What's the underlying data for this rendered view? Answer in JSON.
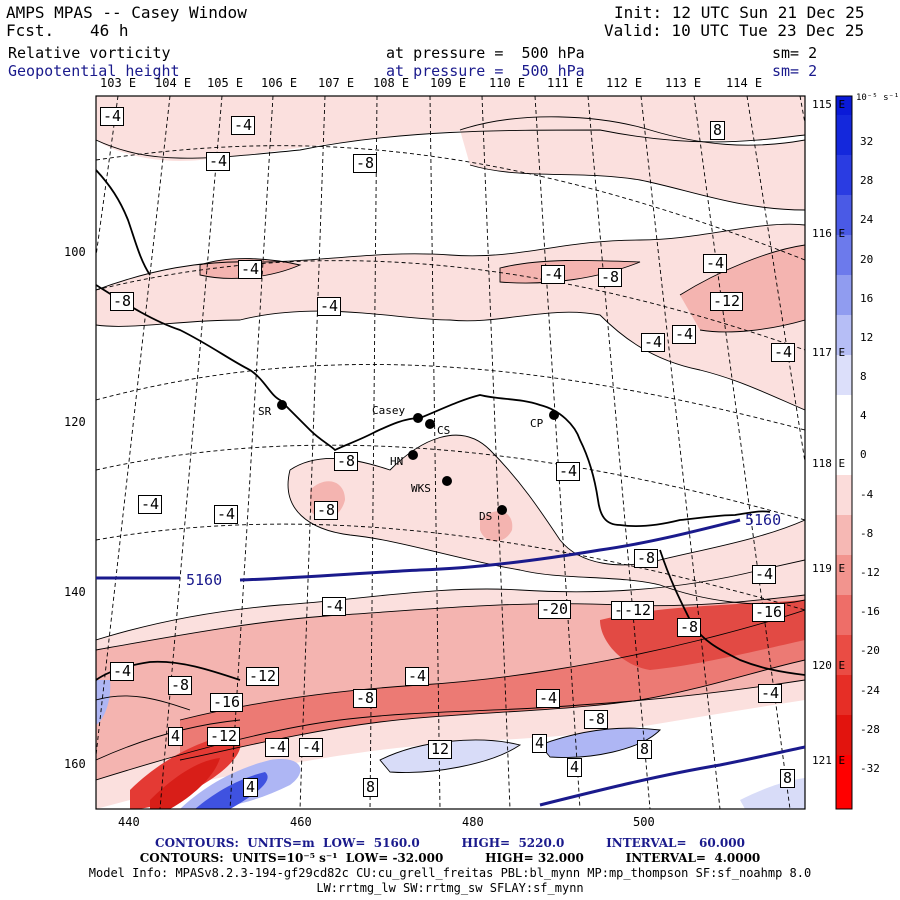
{
  "header": {
    "model": "AMPS MPAS -- Casey Window",
    "fcst_label": "Fcst.",
    "fcst_value": "46 h",
    "init": "Init: 12 UTC Sun 21 Dec 25",
    "valid": "Valid: 10 UTC Tue 23 Dec 25",
    "field1_name": "Relative vorticity",
    "field1_level": "at pressure =  500 hPa",
    "field1_sm": "sm= 2",
    "field2_name": "Geopotential height",
    "field2_level": "at pressure =  500 hPa",
    "field2_sm": "sm= 2"
  },
  "colors": {
    "header_blue": "#1a1a8c",
    "height_contour": "#1a1a8c",
    "neg_vort": "#e8302a",
    "pos_vort": "#2a3ae8"
  },
  "top_lon_labels": [
    "103 E",
    "104 E",
    "105 E",
    "106 E",
    "107 E",
    "108 E",
    "109 E",
    "110 E",
    "111 E",
    "112 E",
    "113 E",
    "114 E"
  ],
  "right_lon_labels": [
    "115 E",
    "116 E",
    "117 E",
    "118 E",
    "119 E",
    "120 E",
    "121 E"
  ],
  "y_axis": [
    "100",
    "120",
    "140",
    "160"
  ],
  "x_axis": [
    "440",
    "460",
    "480",
    "500"
  ],
  "colorbar": {
    "units": "10⁻⁵ s⁻¹",
    "ticks": [
      "32",
      "28",
      "24",
      "20",
      "16",
      "12",
      "8",
      "4",
      "0",
      "-4",
      "-8",
      "-12",
      "-16",
      "-20",
      "-24",
      "-28",
      "-32"
    ]
  },
  "stations": [
    {
      "code": "SR"
    },
    {
      "code": "Casey"
    },
    {
      "code": "CS"
    },
    {
      "code": "HN"
    },
    {
      "code": "WKS"
    },
    {
      "code": "CP"
    },
    {
      "code": "DS"
    }
  ],
  "contour_labels": {
    "height_5160": "5160",
    "vort_labels": [
      "-4",
      "-4",
      "-4",
      "-8",
      "-4",
      "-4",
      "-8",
      "-4",
      "-4",
      "-4",
      "-8",
      "-4",
      "-12",
      "-4",
      "-8",
      "-4",
      "-4",
      "-4",
      "-8",
      "-4",
      "-8",
      "-4",
      "-4",
      "-8",
      "-12",
      "-16",
      "-4",
      "-20",
      "-4",
      "-8",
      "-4",
      "-4",
      "-16",
      "-8",
      "-12",
      "-8",
      "-12",
      "-4",
      "4",
      "-4",
      "4",
      "12",
      "4",
      "8",
      "4",
      "8",
      "8",
      "8"
    ]
  },
  "footer": {
    "line1": "CONTOURS:  UNITS=m  LOW=  5160.0          HIGH=  5220.0          INTERVAL=   60.000",
    "line2": "CONTOURS:  UNITS=10⁻⁵ s⁻¹  LOW= -32.000          HIGH= 32.000          INTERVAL=  4.0000",
    "line3": "Model Info: MPASv8.2.3-194-gf29cd82c CU:cu_grell_freitas PBL:bl_mynn MP:mp_thompson SF:sf_noahmp 8.0",
    "line4": "LW:rrtmg_lw SW:rrtmg_sw SFLAY:sf_mynn"
  }
}
